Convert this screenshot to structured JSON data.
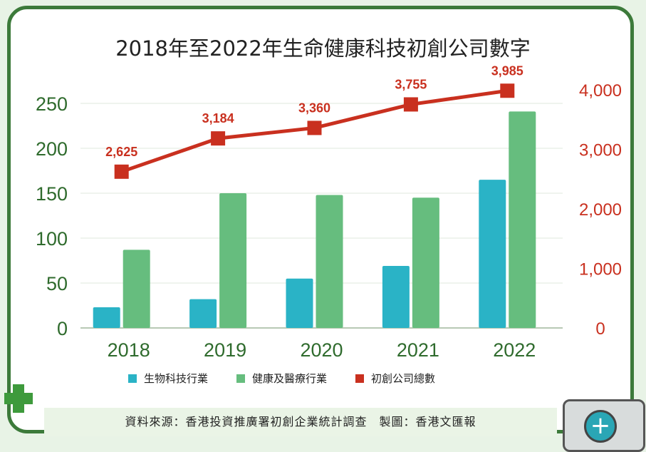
{
  "chart_data": {
    "type": "bar",
    "title": "2018年至2022年生命健康科技初創公司數字",
    "categories": [
      "2018",
      "2019",
      "2020",
      "2021",
      "2022"
    ],
    "series": [
      {
        "name": "生物科技行業",
        "axis": "left",
        "type": "bar",
        "color": "#2ab3c6",
        "values": [
          23,
          32,
          55,
          69,
          165
        ]
      },
      {
        "name": "健康及醫療行業",
        "axis": "left",
        "type": "bar",
        "color": "#66bd7e",
        "values": [
          87,
          150,
          148,
          145,
          241
        ]
      },
      {
        "name": "初創公司總數",
        "axis": "right",
        "type": "line",
        "color": "#c9301f",
        "values": [
          2625,
          3184,
          3360,
          3755,
          3985
        ],
        "labels": [
          "2,625",
          "3,184",
          "3,360",
          "3,755",
          "3,985"
        ]
      }
    ],
    "left_axis": {
      "ylim": [
        0,
        250
      ],
      "ticks": [
        "0",
        "50",
        "100",
        "150",
        "200",
        "250"
      ],
      "color": "#2f6b2d"
    },
    "right_axis": {
      "ylim": [
        0,
        4000
      ],
      "ticks": [
        "0",
        "1,000",
        "2,000",
        "3,000",
        "4,000"
      ],
      "color": "#c9301f"
    },
    "grid": true,
    "legend": "bottom"
  },
  "source": "資料來源：香港投資推廣署初創企業統計調查　製圖：香港文匯報"
}
